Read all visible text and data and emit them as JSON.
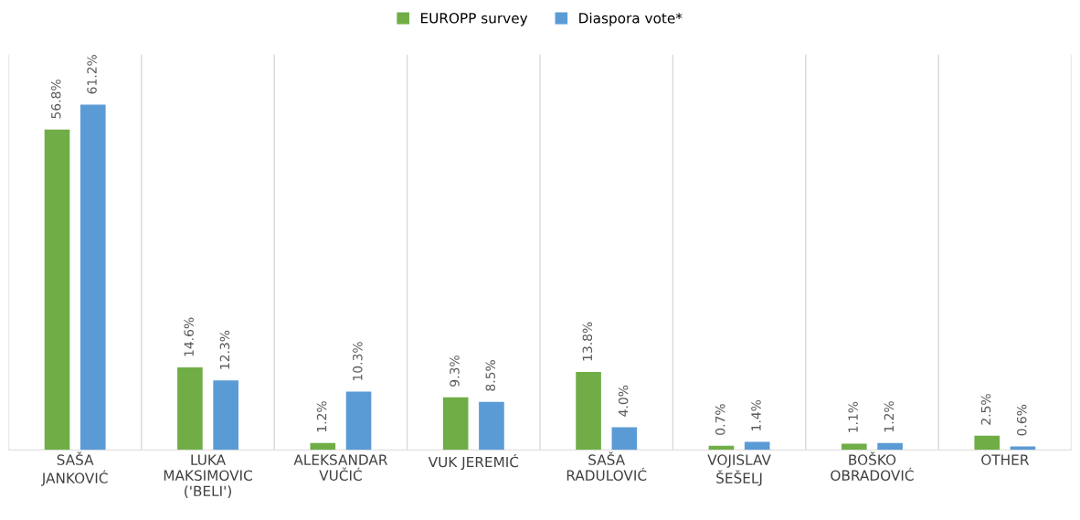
{
  "chart_data": {
    "type": "bar",
    "categories": [
      "SAŠA\nJANKOVIĆ",
      "LUKA\nMAKSIMOVIC\n('BELI')",
      "ALEKSANDAR\nVUČIĆ",
      "VUK JEREMIĆ",
      "SAŠA\nRADULOVIĆ",
      "VOJISLAV\nŠEŠELJ",
      "BOŠKO\nOBRADOVIĆ",
      "OTHER"
    ],
    "series": [
      {
        "name": "EUROPP survey",
        "color": "#70ad47",
        "values": [
          56.8,
          14.6,
          1.2,
          9.3,
          13.8,
          0.7,
          1.1,
          2.5
        ],
        "value_labels": [
          "56.8%",
          "14.6%",
          "1.2%",
          "9.3%",
          "13.8%",
          "0.7%",
          "1.1%",
          "2.5%"
        ]
      },
      {
        "name": "Diaspora vote*",
        "color": "#5b9bd5",
        "values": [
          61.2,
          12.3,
          10.3,
          8.5,
          4.0,
          1.4,
          1.2,
          0.6
        ],
        "value_labels": [
          "61.2%",
          "12.3%",
          "10.3%",
          "8.5%",
          "4.0%",
          "1.4%",
          "1.2%",
          "0.6%"
        ]
      }
    ],
    "legend": "top",
    "grid": "x",
    "tick_labels": "x"
  }
}
